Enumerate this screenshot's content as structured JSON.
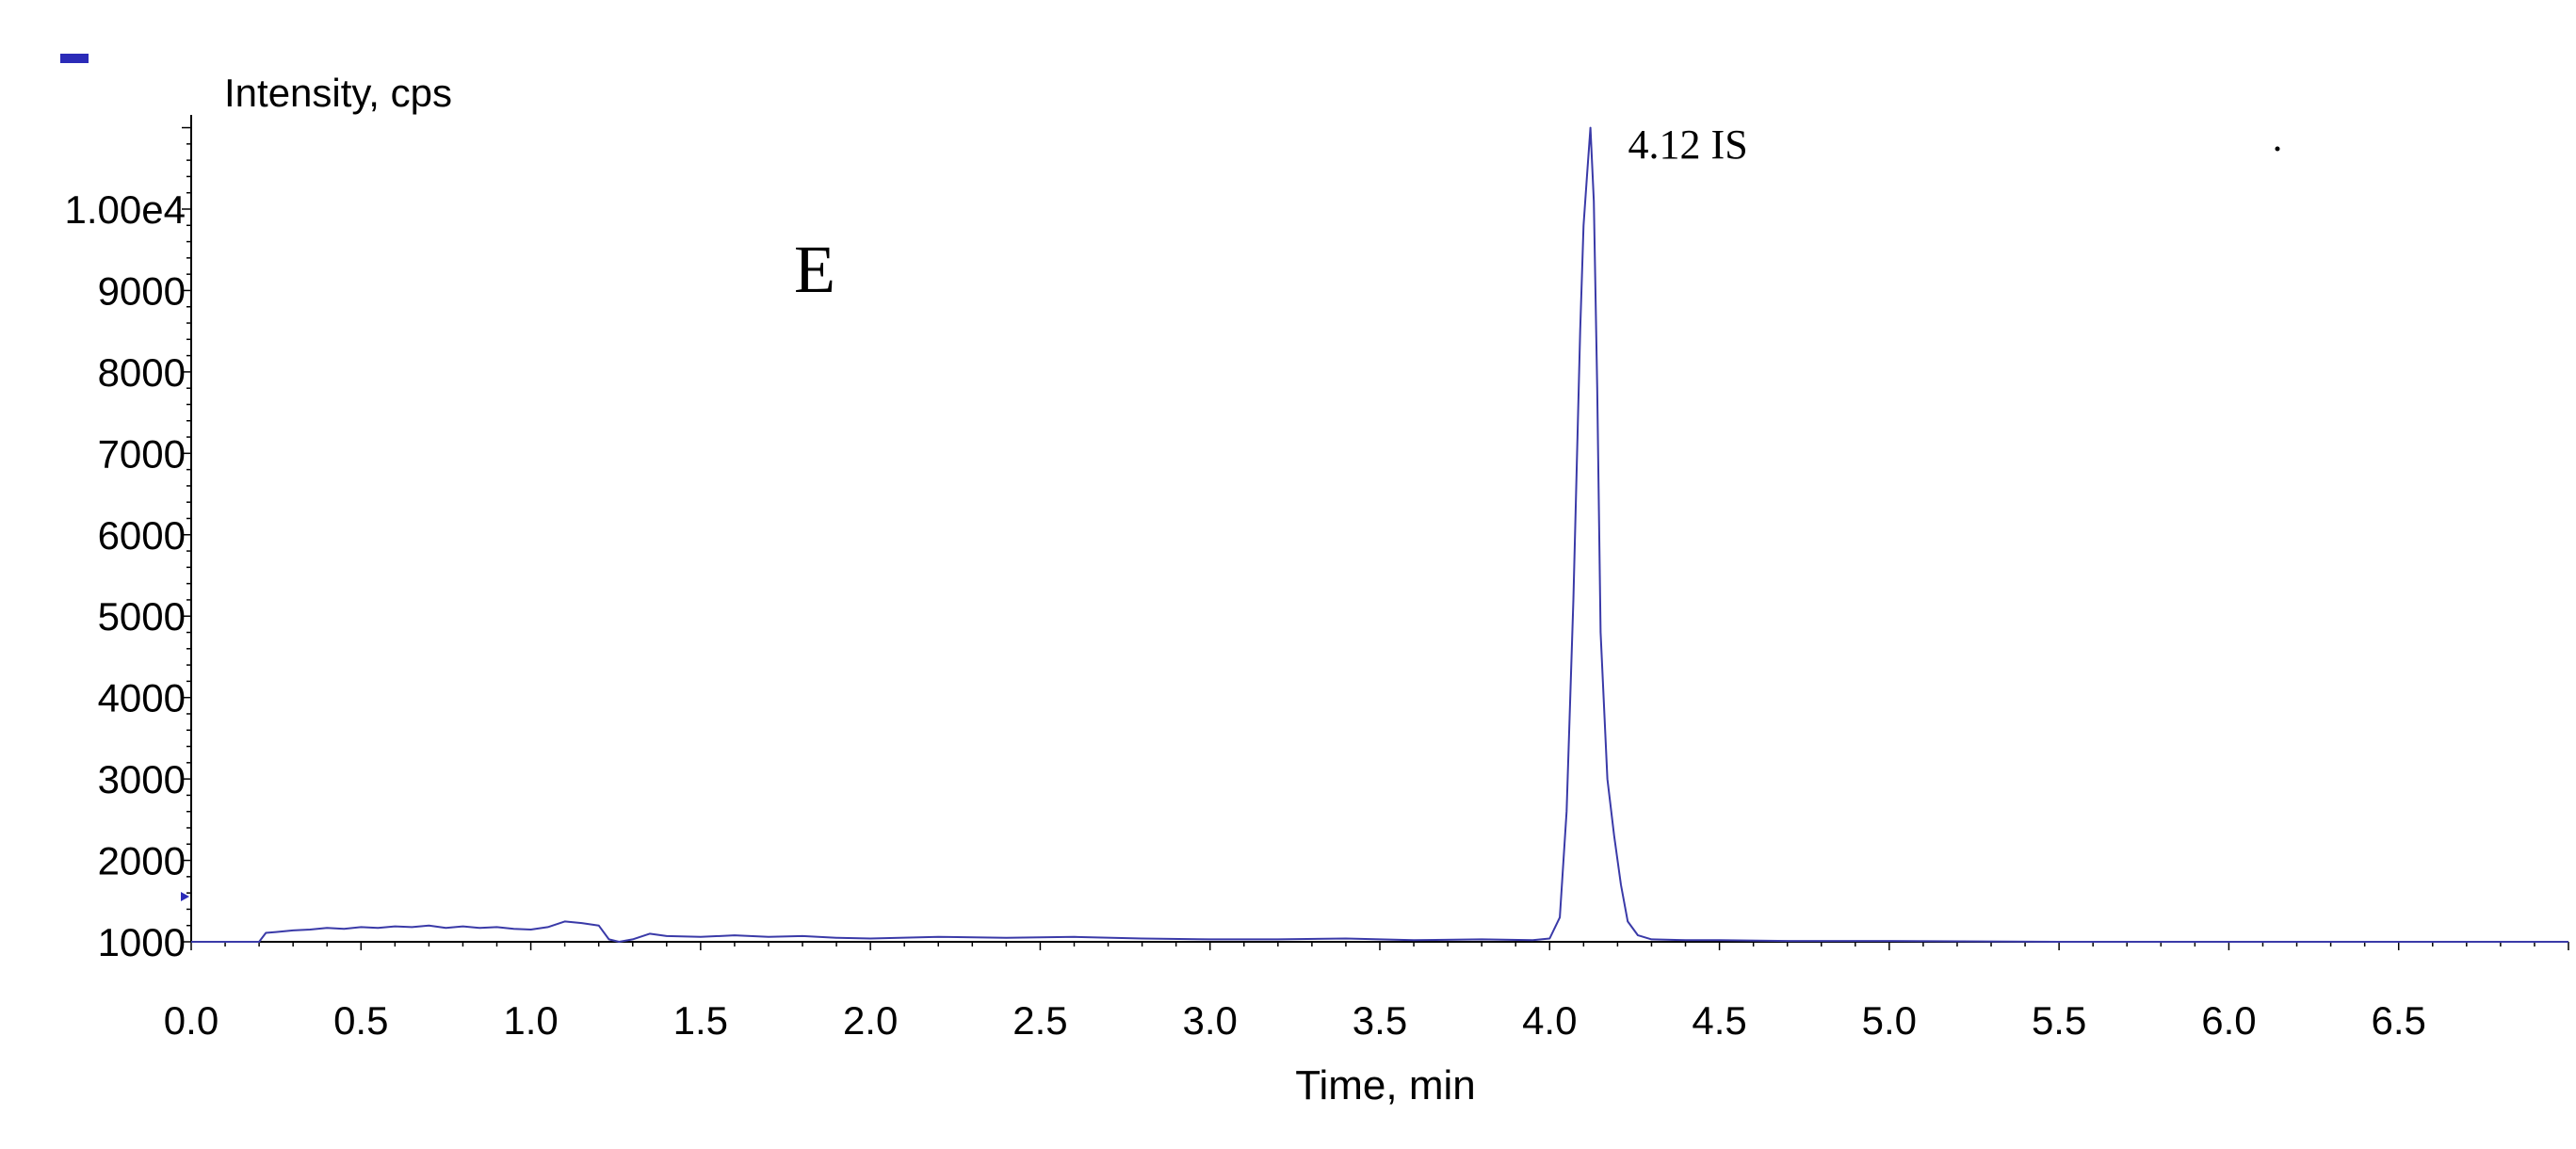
{
  "chart_data": {
    "type": "line",
    "title": "",
    "ylabel": "Intensity, cps",
    "xlabel": "Time, min",
    "panel_label": "E",
    "xlim": [
      0.0,
      7.0
    ],
    "ylim": [
      1000,
      11000
    ],
    "x_ticks": [
      0.0,
      0.5,
      1.0,
      1.5,
      2.0,
      2.5,
      3.0,
      3.5,
      4.0,
      4.5,
      5.0,
      5.5,
      6.0,
      6.5
    ],
    "x_tick_labels": [
      "0.0",
      "0.5",
      "1.0",
      "1.5",
      "2.0",
      "2.5",
      "3.0",
      "3.5",
      "4.0",
      "4.5",
      "5.0",
      "5.5",
      "6.0",
      "6.5"
    ],
    "y_ticks": [
      1000,
      2000,
      3000,
      4000,
      5000,
      6000,
      7000,
      8000,
      9000,
      10000
    ],
    "y_tick_labels": [
      "1000",
      "2000",
      "3000",
      "4000",
      "5000",
      "6000",
      "7000",
      "8000",
      "9000",
      "1.00e4"
    ],
    "grid": false,
    "colors": {
      "trace": "#3a3aa8",
      "axis": "#000000",
      "marker": "#2b2bb8"
    },
    "series": [
      {
        "x": [
          0.0,
          0.1,
          0.2,
          0.22,
          0.25,
          0.3,
          0.35,
          0.4,
          0.45,
          0.5,
          0.55,
          0.6,
          0.65,
          0.7,
          0.75,
          0.8,
          0.85,
          0.9,
          0.95,
          1.0,
          1.05,
          1.1,
          1.15,
          1.2,
          1.23,
          1.26,
          1.3,
          1.35,
          1.4,
          1.5,
          1.6,
          1.7,
          1.8,
          1.9,
          2.0,
          2.2,
          2.4,
          2.6,
          2.8,
          3.0,
          3.2,
          3.4,
          3.6,
          3.8,
          3.95,
          4.0,
          4.03,
          4.05,
          4.07,
          4.09,
          4.1,
          4.11,
          4.12,
          4.13,
          4.14,
          4.15,
          4.17,
          4.19,
          4.21,
          4.23,
          4.26,
          4.3,
          4.4,
          4.5,
          4.7,
          5.0,
          5.5,
          6.0,
          6.5,
          7.0
        ],
        "y": [
          1000,
          1000,
          1000,
          1110,
          1120,
          1140,
          1150,
          1170,
          1160,
          1180,
          1170,
          1190,
          1180,
          1200,
          1170,
          1190,
          1170,
          1180,
          1160,
          1150,
          1180,
          1250,
          1230,
          1200,
          1030,
          1000,
          1030,
          1100,
          1070,
          1060,
          1080,
          1060,
          1070,
          1050,
          1040,
          1060,
          1050,
          1060,
          1040,
          1030,
          1030,
          1040,
          1020,
          1030,
          1020,
          1040,
          1300,
          2600,
          5200,
          8500,
          9800,
          10400,
          11000,
          10100,
          7800,
          4800,
          3000,
          2300,
          1700,
          1250,
          1080,
          1030,
          1020,
          1020,
          1010,
          1010,
          1000,
          1000,
          1000,
          1000
        ]
      }
    ],
    "annotations": [
      {
        "x": 4.12,
        "y": 11000,
        "text": "4.12 IS"
      }
    ]
  }
}
